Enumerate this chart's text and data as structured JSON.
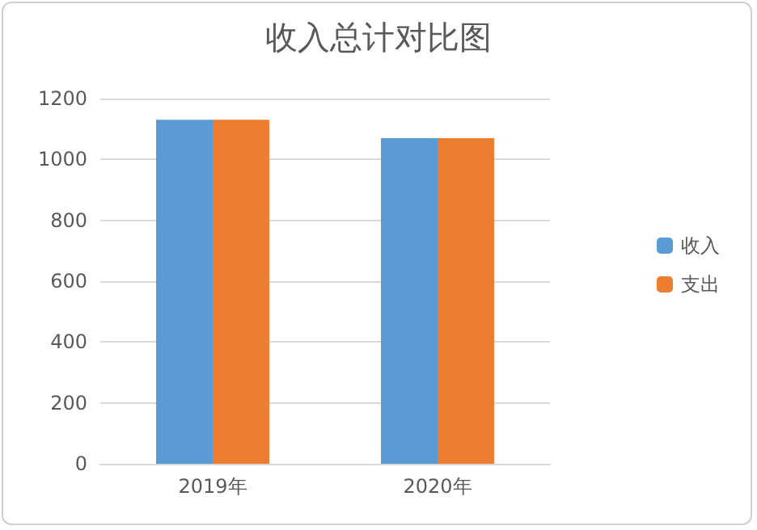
{
  "chart_data": {
    "type": "bar",
    "title": "收入总计对比图",
    "categories": [
      "2019年",
      "2020年"
    ],
    "series": [
      {
        "name": "收入",
        "color": "#5b9bd5",
        "values": [
          1130,
          1070
        ]
      },
      {
        "name": "支出",
        "color": "#ed7d31",
        "values": [
          1130,
          1070
        ]
      }
    ],
    "ylim": [
      0,
      1200
    ],
    "yticks": [
      0,
      200,
      400,
      600,
      800,
      1000,
      1200
    ],
    "grid": "y",
    "legend": "right"
  }
}
